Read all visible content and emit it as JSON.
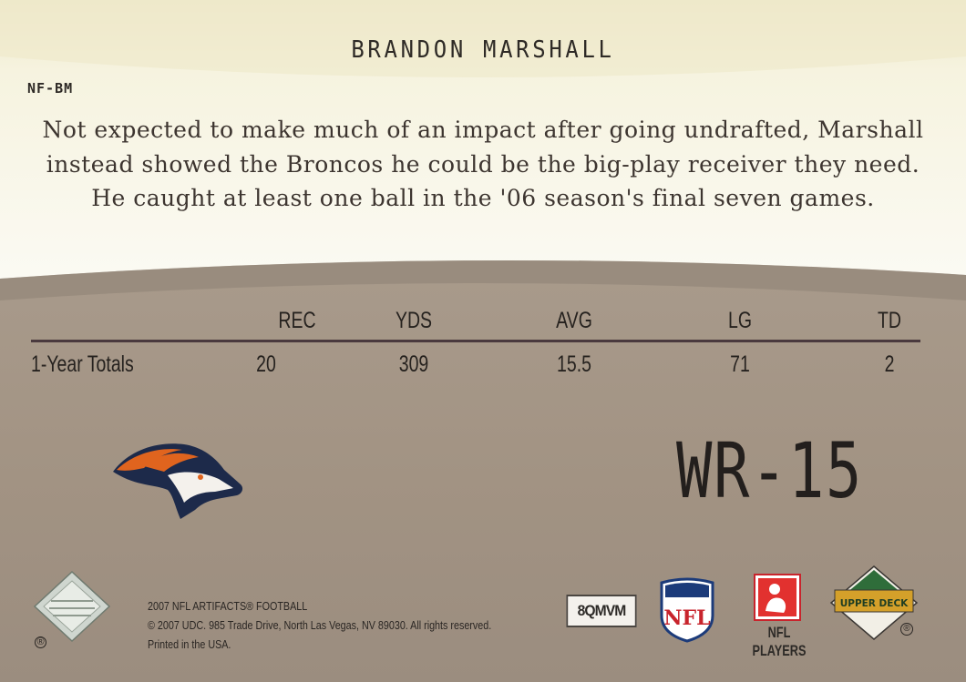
{
  "card": {
    "player_name": "BRANDON MARSHALL",
    "card_code": "NF-BM",
    "bio": "Not expected to make much of an impact after going undrafted, Marshall instead showed the Broncos he could be the big-play receiver they need. He caught at least one ball in the '06 season's final seven games.",
    "position_number": "WR-15"
  },
  "stats": {
    "headers": [
      "REC",
      "YDS",
      "AVG",
      "LG",
      "TD"
    ],
    "row_label": "1-Year Totals",
    "values": [
      "20",
      "309",
      "15.5",
      "71",
      "2"
    ]
  },
  "footer": {
    "line1": "2007 NFL ARTIFACTS® FOOTBALL",
    "line2": "© 2007 UDC. 985 Trade Drive, North Las Vegas, NV 89030. All rights reserved.",
    "line3": "Printed in the USA.",
    "serial": "8QMVM",
    "nfl_logo_text": "NFL",
    "players_label": "NFL PLAYERS",
    "upper_deck_text": "UPPER DECK",
    "registered_mark": "®"
  },
  "colors": {
    "cream_panel": "#f6f3df",
    "card_tan": "#a89a8b",
    "rule": "#4a3a3e",
    "broncos_orange": "#e0641e",
    "broncos_navy": "#1d2a4a",
    "nfl_blue": "#1c3b7a",
    "nfl_red": "#c8242c",
    "ud_gold": "#d4a02a",
    "ud_green": "#2f6d3a"
  },
  "icons": {
    "team_logo": "broncos-horse-head-icon",
    "hologram": "hologram-diamond-icon",
    "nfl": "nfl-shield-icon",
    "players": "nfl-players-icon",
    "upper_deck": "upper-deck-diamond-icon"
  }
}
